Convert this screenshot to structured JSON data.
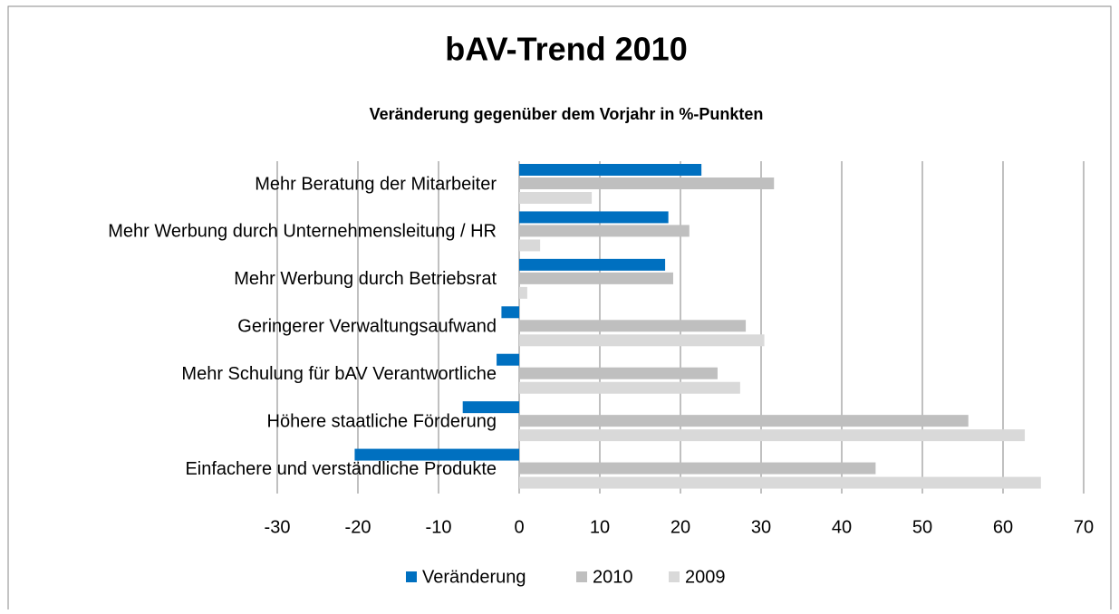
{
  "chart_data": {
    "type": "bar",
    "orientation": "horizontal",
    "title": "bAV-Trend 2010",
    "subtitle": "Veränderung gegenüber dem Vorjahr in %-Punkten",
    "categories": [
      "Mehr Beratung der Mitarbeiter",
      "Mehr Werbung durch Unternehmensleitung / HR",
      "Mehr Werbung durch Betriebsrat",
      "Geringerer Verwaltungsaufwand",
      "Mehr Schulung für bAV Verantwortliche",
      "Höhere staatliche Förderung",
      "Einfachere und verständliche Produkte"
    ],
    "series": [
      {
        "name": "Veränderung",
        "color": "#0070c0",
        "values": [
          22.6,
          18.5,
          18.1,
          -2.2,
          -2.8,
          -7.0,
          -20.4
        ]
      },
      {
        "name": "2010",
        "color": "#bfbfbf",
        "values": [
          31.6,
          21.1,
          19.1,
          28.1,
          24.6,
          55.7,
          44.2
        ]
      },
      {
        "name": "2009",
        "color": "#d9d9d9",
        "values": [
          9.0,
          2.6,
          1.0,
          30.4,
          27.4,
          62.7,
          64.7
        ]
      }
    ],
    "xlim": [
      -30,
      70
    ],
    "xticks": [
      -30,
      -20,
      -10,
      0,
      10,
      20,
      30,
      40,
      50,
      60,
      70
    ],
    "grid": true,
    "legend": "bottom"
  }
}
